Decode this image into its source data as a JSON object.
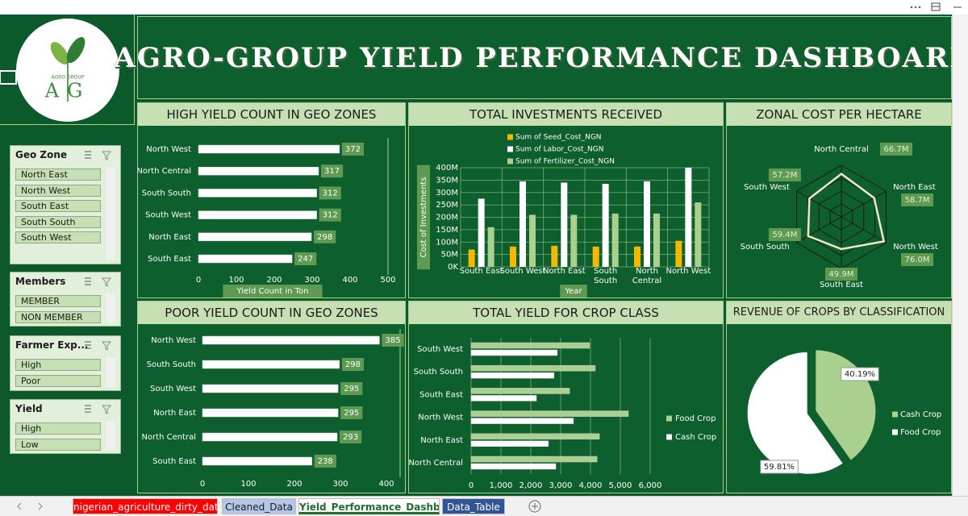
{
  "window": {
    "tabs": [
      "nigerian_agriculture_dirty_data",
      "Cleaned_Data",
      "Yield_Performance_Dashboar",
      "Data_Table"
    ]
  },
  "logo": {
    "mark": "AG",
    "text": "AGRO GROUP"
  },
  "title": "AGRO-GROUP YIELD PERFORMANCE DASHBOARD",
  "slicers": [
    {
      "title": "Geo Zone",
      "items": [
        "North East",
        "North West",
        "South East",
        "South South",
        "South West"
      ]
    },
    {
      "title": "Members",
      "items": [
        "MEMBER",
        "NON MEMBER"
      ]
    },
    {
      "title": "Farmer Exp...",
      "items": [
        "High",
        "Poor"
      ]
    },
    {
      "title": "Yield",
      "items": [
        "High",
        "Low"
      ]
    }
  ],
  "chart_data": [
    {
      "type": "bar",
      "orientation": "horizontal",
      "title": "HIGH YIELD COUNT IN GEO ZONES",
      "categories": [
        "North West",
        "North Central",
        "South South",
        "South West",
        "North East",
        "South East"
      ],
      "values": [
        372,
        317,
        312,
        312,
        298,
        247
      ],
      "color": "#ffffff",
      "xlim": [
        0,
        500
      ],
      "xticks": [
        0,
        100,
        200,
        300,
        400,
        500
      ],
      "x_label": "Yield Count in Ton",
      "grid": false
    },
    {
      "type": "bar",
      "title": "TOTAL INVESTMENTS RECEIVED",
      "categories": [
        "South East",
        "South West",
        "North East",
        "South South",
        "North Central",
        "North West"
      ],
      "series": [
        {
          "name": "Sum of Seed_Cost_NGN",
          "color": "#f5b800",
          "values": [
            70000000,
            82000000,
            85000000,
            82000000,
            82000000,
            105000000
          ]
        },
        {
          "name": "Sum of Labor_Cost_NGN",
          "color": "#ffffff",
          "values": [
            275000000,
            345000000,
            340000000,
            335000000,
            345000000,
            400000000
          ]
        },
        {
          "name": "Sum of Fertilizer_Cost_NGN",
          "color": "#a9d08e",
          "values": [
            160000000,
            210000000,
            210000000,
            215000000,
            215000000,
            260000000
          ]
        }
      ],
      "ylim": [
        0,
        400000000
      ],
      "yticks": [
        {
          "value": 0,
          "label": "0K"
        },
        {
          "value": 50000000,
          "label": "50M"
        },
        {
          "value": 100000000,
          "label": "100M"
        },
        {
          "value": 150000000,
          "label": "150M"
        },
        {
          "value": 200000000,
          "label": "200M"
        },
        {
          "value": 250000000,
          "label": "250M"
        },
        {
          "value": 300000000,
          "label": "300M"
        },
        {
          "value": 350000000,
          "label": "350M"
        },
        {
          "value": 400000000,
          "label": "400M"
        }
      ],
      "y_label": "Cost of Investments",
      "x_label": "Year",
      "grid": true,
      "legend": "top"
    },
    {
      "type": "radar",
      "title": "ZONAL COST PER HECTARE",
      "categories": [
        "North Central",
        "North East",
        "North West",
        "South East",
        "South South",
        "South West"
      ],
      "values": [
        66.7,
        58.7,
        76.0,
        49.9,
        59.4,
        57.2
      ],
      "value_labels": [
        "66.7M",
        "58.7M",
        "76.0M",
        "49.9M",
        "59.4M",
        "57.2M"
      ],
      "color": "#f3e7c6",
      "ylim": [
        0,
        80
      ],
      "grid": true
    },
    {
      "type": "bar",
      "orientation": "horizontal",
      "title": "POOR YIELD COUNT IN GEO ZONES",
      "categories": [
        "North West",
        "South South",
        "South West",
        "North East",
        "North Central",
        "South East"
      ],
      "values": [
        385,
        298,
        295,
        295,
        293,
        238
      ],
      "color": "#ffffff",
      "xlim": [
        0,
        400
      ],
      "xticks": [
        0,
        100,
        200,
        300,
        400
      ],
      "grid": false
    },
    {
      "type": "bar",
      "orientation": "horizontal",
      "title": "TOTAL YIELD FOR CROP CLASS",
      "categories": [
        "South West",
        "South South",
        "South East",
        "North West",
        "North East",
        "North Central"
      ],
      "series": [
        {
          "name": "Food Crop",
          "color": "#a9d08e",
          "values": [
            3970,
            4160,
            3300,
            5270,
            4300,
            4220
          ]
        },
        {
          "name": "Cash Crop",
          "color": "#ffffff",
          "values": [
            2890,
            2780,
            2190,
            3430,
            2590,
            2840
          ]
        }
      ],
      "xlim": [
        0,
        6000
      ],
      "xticks": [
        0,
        {
          "value": 1000,
          "label": "1,000"
        },
        {
          "value": 2000,
          "label": "2,000"
        },
        {
          "value": 3000,
          "label": "3,000"
        },
        {
          "value": 4000,
          "label": "4,000"
        },
        {
          "value": 5000,
          "label": "5,000"
        },
        {
          "value": 6000,
          "label": "6,000"
        }
      ],
      "grid": true,
      "legend": "right"
    },
    {
      "type": "pie",
      "title": "REVENUE OF CROPS BY CLASSIFICATION",
      "categories": [
        "Cash Crop",
        "Food Crop"
      ],
      "values": [
        40.19,
        59.81
      ],
      "value_labels": [
        "40.19%",
        "59.81%"
      ],
      "colors": [
        "#a9d08e",
        "#ffffff"
      ],
      "legend": "right"
    }
  ]
}
